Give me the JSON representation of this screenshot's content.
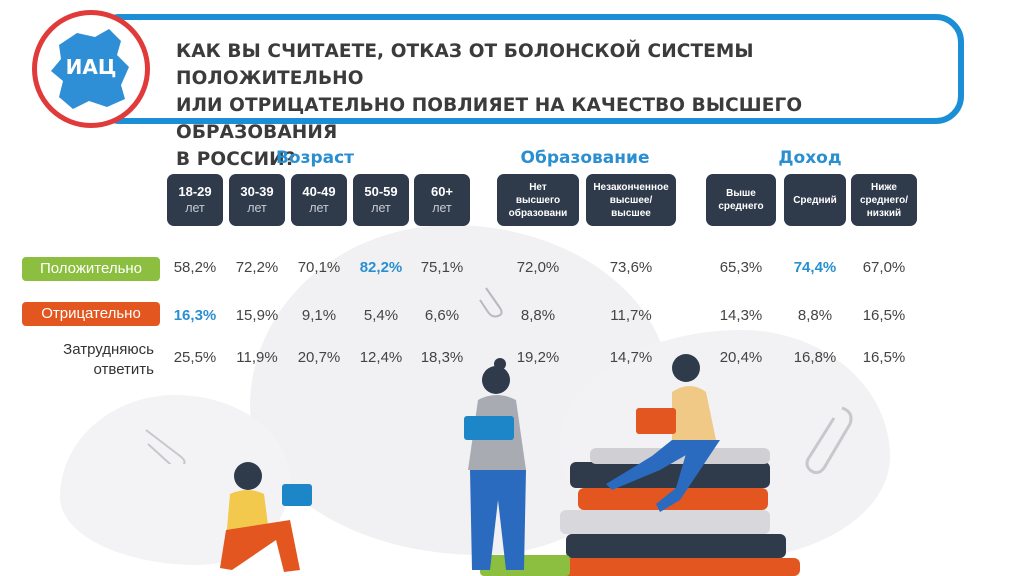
{
  "logo": {
    "text": "ИАЦ"
  },
  "title": "КАК ВЫ СЧИТАЕТЕ, ОТКАЗ ОТ БОЛОНСКОЙ СИСТЕМЫ ПОЛОЖИТЕЛЬНО\nИЛИ ОТРИЦАТЕЛЬНО ПОВЛИЯЕТ НА КАЧЕСТВО ВЫСШЕГО ОБРАЗОВАНИЯ\nВ РОССИИ?",
  "groups": {
    "age": "Возраст",
    "education": "Образование",
    "income": "Доход"
  },
  "columns": [
    {
      "l1": "18-29",
      "l2": "лет"
    },
    {
      "l1": "30-39",
      "l2": "лет"
    },
    {
      "l1": "40-49",
      "l2": "лет"
    },
    {
      "l1": "50-59",
      "l2": "лет"
    },
    {
      "l1": "60+",
      "l2": "лет"
    },
    {
      "l1": "Нет\nвысшего\nобразовани",
      "l2": ""
    },
    {
      "l1": "Незаконченное\nвысшее/\nвысшее",
      "l2": ""
    },
    {
      "l1": "Выше\nсреднего",
      "l2": ""
    },
    {
      "l1": "Средний",
      "l2": ""
    },
    {
      "l1": "Ниже\nсреднего/\nнизкий",
      "l2": ""
    }
  ],
  "rows": [
    {
      "label": "Положительно",
      "values": [
        "58,2%",
        "72,2%",
        "70,1%",
        "82,2%",
        "75,1%",
        "72,0%",
        "73,6%",
        "65,3%",
        "74,4%",
        "67,0%"
      ]
    },
    {
      "label": "Отрицательно",
      "values": [
        "16,3%",
        "15,9%",
        "9,1%",
        "5,4%",
        "6,6%",
        "8,8%",
        "11,7%",
        "14,3%",
        "8,8%",
        "16,5%"
      ]
    },
    {
      "label": "Затрудняюсь\nответить",
      "values": [
        "25,5%",
        "11,9%",
        "20,7%",
        "12,4%",
        "18,3%",
        "19,2%",
        "14,7%",
        "20,4%",
        "16,8%",
        "16,5%"
      ]
    }
  ],
  "highlights": [
    [
      0,
      3
    ],
    [
      0,
      8
    ],
    [
      1,
      0
    ]
  ],
  "colors": {
    "accent": "#1a8fd6",
    "positive": "#8cbf3f",
    "negative": "#e4561f",
    "header_cell": "#2f3a4b"
  }
}
